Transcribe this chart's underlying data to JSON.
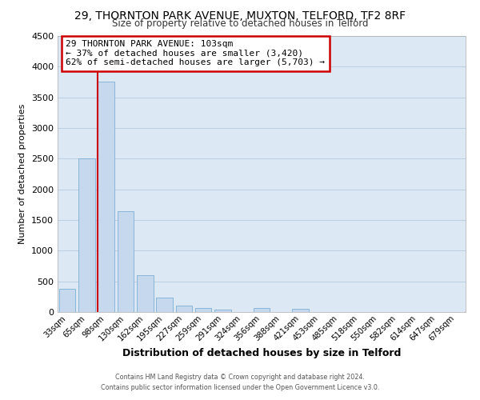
{
  "title1": "29, THORNTON PARK AVENUE, MUXTON, TELFORD, TF2 8RF",
  "title2": "Size of property relative to detached houses in Telford",
  "xlabel": "Distribution of detached houses by size in Telford",
  "ylabel": "Number of detached properties",
  "categories": [
    "33sqm",
    "65sqm",
    "98sqm",
    "130sqm",
    "162sqm",
    "195sqm",
    "227sqm",
    "259sqm",
    "291sqm",
    "324sqm",
    "356sqm",
    "388sqm",
    "421sqm",
    "453sqm",
    "485sqm",
    "518sqm",
    "550sqm",
    "582sqm",
    "614sqm",
    "647sqm",
    "679sqm"
  ],
  "values": [
    380,
    2500,
    3750,
    1640,
    600,
    240,
    105,
    60,
    40,
    0,
    60,
    0,
    55,
    0,
    0,
    0,
    0,
    0,
    0,
    0,
    0
  ],
  "bar_color": "#c5d8ed",
  "bar_edgecolor": "#7daed4",
  "ylim": [
    0,
    4500
  ],
  "yticks": [
    0,
    500,
    1000,
    1500,
    2000,
    2500,
    3000,
    3500,
    4000,
    4500
  ],
  "property_line_color": "#cc0000",
  "annotation_title": "29 THORNTON PARK AVENUE: 103sqm",
  "annotation_line1": "← 37% of detached houses are smaller (3,420)",
  "annotation_line2": "62% of semi-detached houses are larger (5,703) →",
  "annotation_box_edgecolor": "#cc0000",
  "footer1": "Contains HM Land Registry data © Crown copyright and database right 2024.",
  "footer2": "Contains public sector information licensed under the Open Government Licence v3.0.",
  "background_color": "#ffffff",
  "plot_bg_color": "#dce8f4",
  "grid_color": "#bccfe0"
}
